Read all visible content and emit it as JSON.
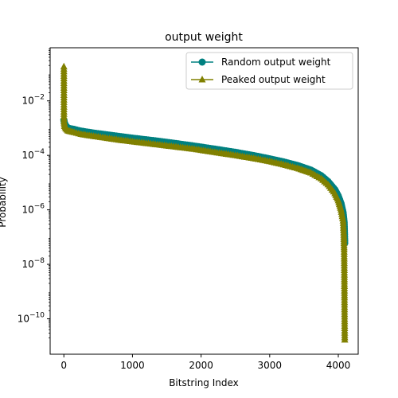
{
  "chart_data": {
    "type": "line",
    "title": "output weight",
    "xlabel": "Bitstring Index",
    "ylabel": "Probability",
    "xlim": [
      -200,
      4290
    ],
    "ylim_log10": [
      -11.3,
      -0.05
    ],
    "yscale": "log",
    "grid": false,
    "legend_position": "upper right",
    "xticks": [
      0,
      1000,
      2000,
      3000,
      4000
    ],
    "xtick_labels": [
      "0",
      "1000",
      "2000",
      "3000",
      "4000"
    ],
    "yticks_log10": [
      -10,
      -8,
      -6,
      -4,
      -2
    ],
    "ytick_labels": [
      {
        "base": "10",
        "exp": "−10"
      },
      {
        "base": "10",
        "exp": "−8"
      },
      {
        "base": "10",
        "exp": "−6"
      },
      {
        "base": "10",
        "exp": "−4"
      },
      {
        "base": "10",
        "exp": "−2"
      }
    ],
    "series": [
      {
        "name": "Random output weight",
        "color": "#008080",
        "marker": "circle",
        "points": [
          [
            0,
            0.002
          ],
          [
            10,
            0.0015
          ],
          [
            30,
            0.0012
          ],
          [
            60,
            0.001
          ],
          [
            100,
            0.00095
          ],
          [
            150,
            0.0009
          ],
          [
            250,
            0.00078
          ],
          [
            400,
            0.00068
          ],
          [
            600,
            0.00058
          ],
          [
            800,
            0.0005
          ],
          [
            1000,
            0.00043
          ],
          [
            1300,
            0.00035
          ],
          [
            1600,
            0.00028
          ],
          [
            1900,
            0.00022
          ],
          [
            2200,
            0.00017
          ],
          [
            2500,
            0.00013
          ],
          [
            2800,
            9.5e-05
          ],
          [
            3000,
            7.5e-05
          ],
          [
            3200,
            5.8e-05
          ],
          [
            3400,
            4.3e-05
          ],
          [
            3600,
            2.9e-05
          ],
          [
            3750,
            1.8e-05
          ],
          [
            3850,
            1.1e-05
          ],
          [
            3950,
            5.5e-06
          ],
          [
            4000,
            3.2e-06
          ],
          [
            4040,
            1.7e-06
          ],
          [
            4070,
            8e-07
          ],
          [
            4085,
            3.5e-07
          ],
          [
            4090,
            1.5e-07
          ],
          [
            4094,
            6e-08
          ]
        ]
      },
      {
        "name": "Peaked output weight",
        "color": "#808000",
        "marker": "triangle",
        "points": [
          [
            0,
            0.18
          ],
          [
            1,
            0.0018
          ],
          [
            10,
            0.00118
          ],
          [
            30,
            0.00095
          ],
          [
            60,
            0.0008
          ],
          [
            100,
            0.00075
          ],
          [
            150,
            0.0007
          ],
          [
            250,
            0.0006
          ],
          [
            400,
            0.00052
          ],
          [
            600,
            0.00044
          ],
          [
            800,
            0.00037
          ],
          [
            1000,
            0.00032
          ],
          [
            1300,
            0.00026
          ],
          [
            1600,
            0.00021
          ],
          [
            1900,
            0.00017
          ],
          [
            2200,
            0.00013
          ],
          [
            2500,
            0.0001
          ],
          [
            2800,
            7.5e-05
          ],
          [
            3000,
            6e-05
          ],
          [
            3200,
            4.6e-05
          ],
          [
            3400,
            3.4e-05
          ],
          [
            3600,
            2.3e-05
          ],
          [
            3750,
            1.4e-05
          ],
          [
            3850,
            8.5e-06
          ],
          [
            3950,
            4e-06
          ],
          [
            4000,
            2.2e-06
          ],
          [
            4040,
            1e-06
          ],
          [
            4070,
            4e-07
          ],
          [
            4080,
            1.2e-07
          ],
          [
            4085,
            3.5e-08
          ],
          [
            4088,
            5e-09
          ],
          [
            4090,
            6e-10
          ],
          [
            4092,
            8e-11
          ],
          [
            4094,
            1.7e-11
          ]
        ]
      }
    ]
  }
}
